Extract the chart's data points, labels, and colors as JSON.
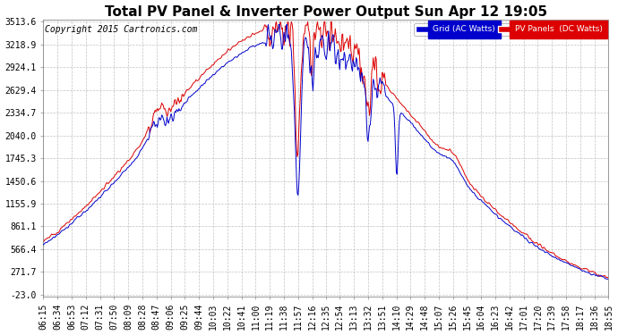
{
  "title": "Total PV Panel & Inverter Power Output Sun Apr 12 19:05",
  "copyright": "Copyright 2015 Cartronics.com",
  "legend_grid": "Grid (AC Watts)",
  "legend_pv": "PV Panels  (DC Watts)",
  "grid_color": "#0000cc",
  "pv_color": "#dd0000",
  "bg_color": "#ffffff",
  "plot_bg": "#ffffff",
  "grid_line_color": "#bbbbbb",
  "yticks": [
    -23.0,
    271.7,
    566.4,
    861.1,
    1155.9,
    1450.6,
    1745.3,
    2040.0,
    2334.7,
    2629.4,
    2924.1,
    3218.9,
    3513.6
  ],
  "ylim_min": -23.0,
  "ylim_max": 3513.6,
  "title_fontsize": 11,
  "axis_fontsize": 7,
  "copyright_fontsize": 7
}
